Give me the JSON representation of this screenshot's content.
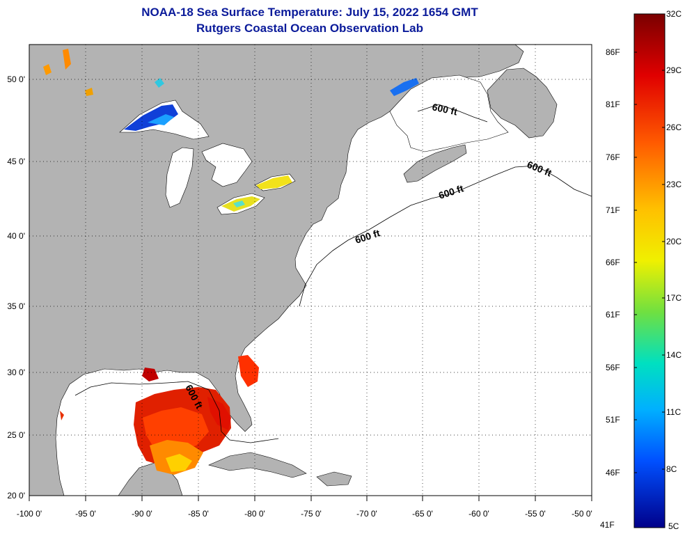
{
  "title": "NOAA-18 Sea Surface Temperature:  July 15, 2022 1654 GMT",
  "subtitle": "Rutgers Coastal Ocean Observation Lab",
  "map": {
    "lon_range": [
      -100,
      -50
    ],
    "lat_range": [
      20,
      52.5
    ],
    "x_ticks": [
      "-100 0'",
      "-95 0'",
      "-90 0'",
      "-85 0'",
      "-80 0'",
      "-75 0'",
      "-70 0'",
      "-65 0'",
      "-60 0'",
      "-55 0'",
      "-50 0'"
    ],
    "y_ticks": [
      "50 0'",
      "45 0'",
      "40 0'",
      "35 0'",
      "30 0'",
      "25 0'",
      "20 0'"
    ],
    "contour_label": "600 ft",
    "land_color": "#b3b3b3",
    "ocean_color": "#ffffff"
  },
  "colorbar": {
    "range_c": [
      5,
      32
    ],
    "celsius_labels": [
      "32C",
      "29C",
      "26C",
      "23C",
      "20C",
      "17C",
      "14C",
      "11C",
      "8C",
      "5C"
    ],
    "fahrenheit_labels": [
      "86F",
      "81F",
      "76F",
      "71F",
      "66F",
      "61F",
      "56F",
      "51F",
      "46F",
      "41F"
    ]
  }
}
